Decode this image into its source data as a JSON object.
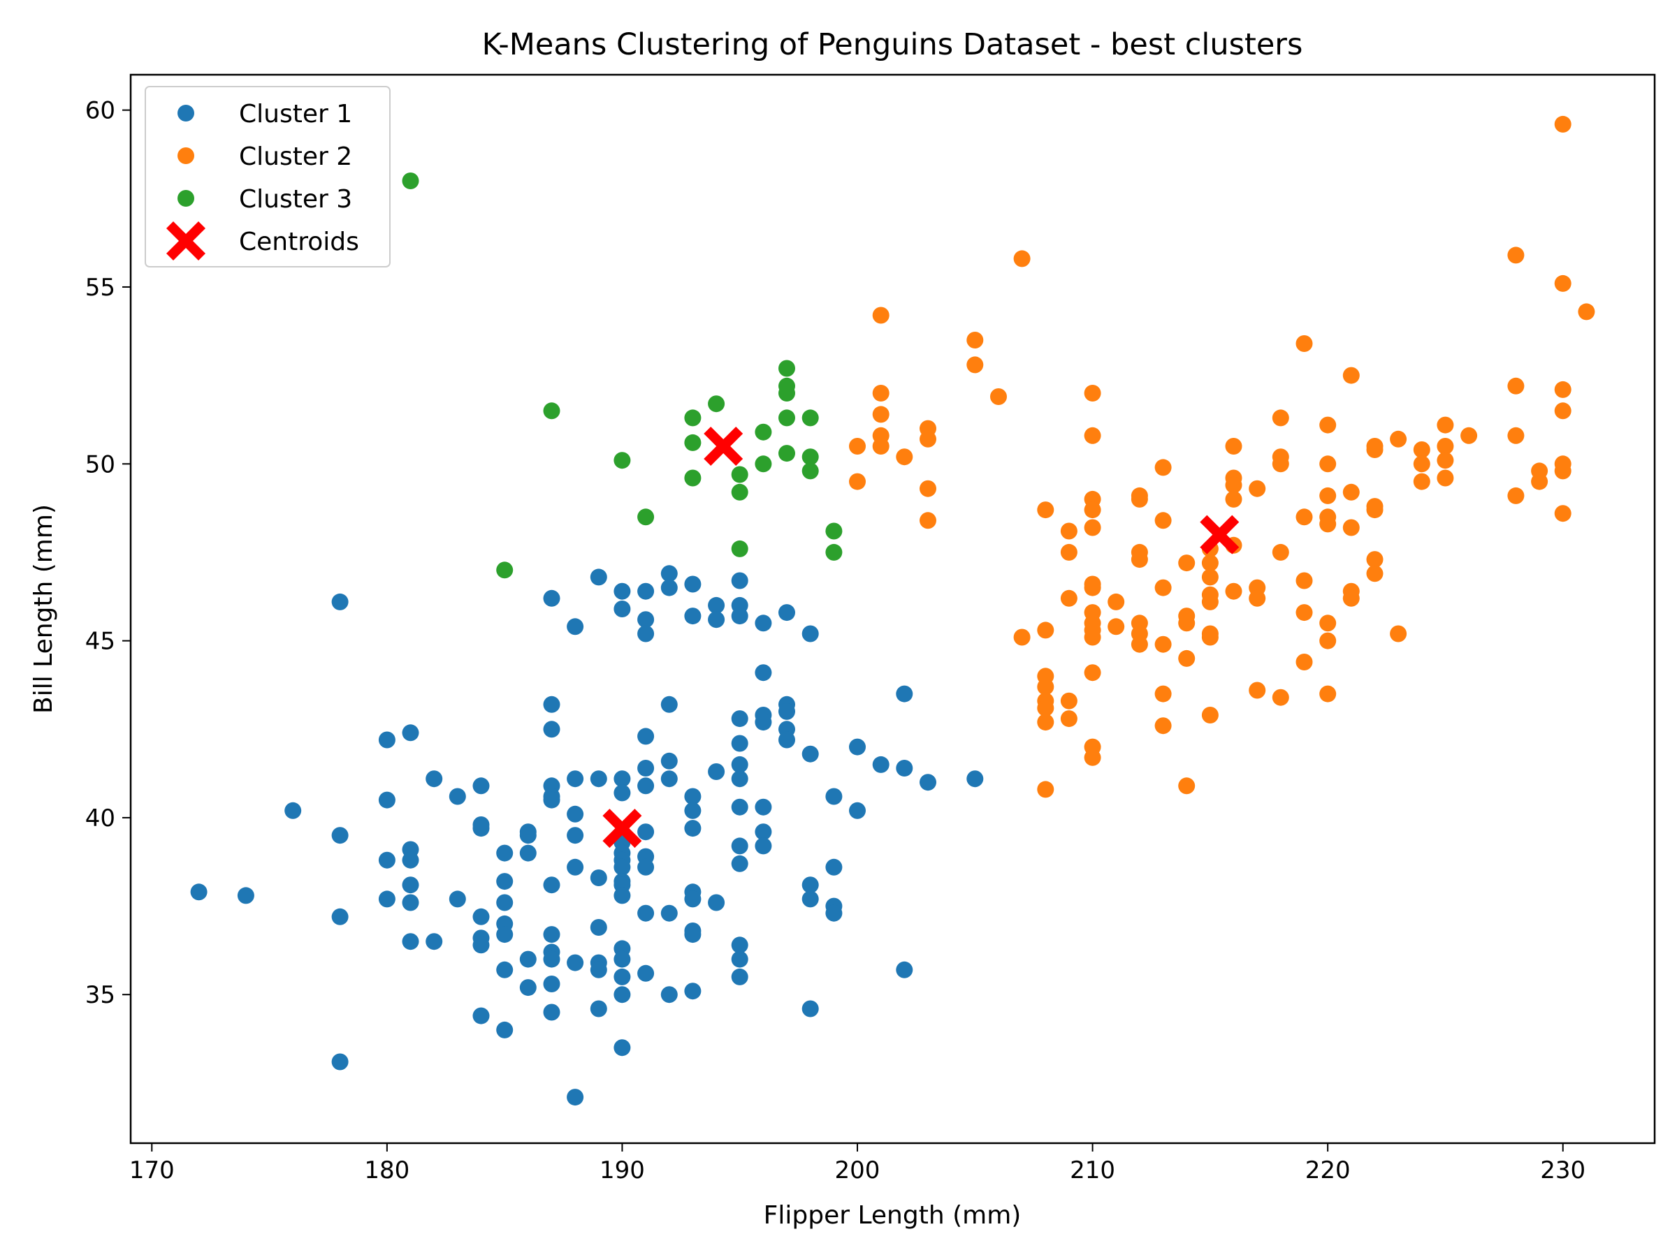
{
  "chart_data": {
    "type": "scatter",
    "title": "K-Means Clustering of Penguins Dataset - best clusters",
    "xlabel": "Flipper Length (mm)",
    "ylabel": "Bill Length (mm)",
    "xlim": [
      169.1,
      233.9
    ],
    "ylim": [
      30.8,
      61.0
    ],
    "xticks": [
      170,
      180,
      190,
      200,
      210,
      220,
      230
    ],
    "yticks": [
      35,
      40,
      45,
      50,
      55,
      60
    ],
    "grid": false,
    "legend_position": "top-left",
    "series": [
      {
        "name": "Cluster 1",
        "color": "#1f77b4",
        "marker": "circle",
        "points": [
          [
            172,
            37.9
          ],
          [
            174,
            37.8
          ],
          [
            176,
            40.2
          ],
          [
            178,
            46.1
          ],
          [
            178,
            39.5
          ],
          [
            178,
            37.2
          ],
          [
            178,
            33.1
          ],
          [
            180,
            42.2
          ],
          [
            180,
            40.5
          ],
          [
            180,
            38.8
          ],
          [
            180,
            37.7
          ],
          [
            181,
            42.4
          ],
          [
            181,
            39.1
          ],
          [
            181,
            38.8
          ],
          [
            181,
            38.1
          ],
          [
            181,
            37.6
          ],
          [
            181,
            36.5
          ],
          [
            182,
            41.1
          ],
          [
            182,
            36.5
          ],
          [
            183,
            40.6
          ],
          [
            183,
            37.7
          ],
          [
            184,
            40.9
          ],
          [
            184,
            39.8
          ],
          [
            184,
            39.7
          ],
          [
            184,
            37.2
          ],
          [
            184,
            36.6
          ],
          [
            184,
            36.4
          ],
          [
            184,
            34.4
          ],
          [
            185,
            39.0
          ],
          [
            185,
            38.2
          ],
          [
            185,
            37.6
          ],
          [
            185,
            37.0
          ],
          [
            185,
            36.7
          ],
          [
            185,
            35.7
          ],
          [
            185,
            34.0
          ],
          [
            186,
            39.6
          ],
          [
            186,
            39.5
          ],
          [
            186,
            39.0
          ],
          [
            186,
            36.0
          ],
          [
            186,
            35.2
          ],
          [
            187,
            46.2
          ],
          [
            187,
            43.2
          ],
          [
            187,
            42.5
          ],
          [
            187,
            40.9
          ],
          [
            187,
            40.6
          ],
          [
            187,
            40.5
          ],
          [
            187,
            38.1
          ],
          [
            187,
            36.7
          ],
          [
            187,
            36.2
          ],
          [
            187,
            36.0
          ],
          [
            187,
            35.3
          ],
          [
            187,
            34.5
          ],
          [
            188,
            45.4
          ],
          [
            188,
            41.1
          ],
          [
            188,
            40.1
          ],
          [
            188,
            39.5
          ],
          [
            188,
            38.6
          ],
          [
            188,
            35.9
          ],
          [
            188,
            32.1
          ],
          [
            189,
            46.8
          ],
          [
            189,
            41.1
          ],
          [
            189,
            38.3
          ],
          [
            189,
            36.9
          ],
          [
            189,
            35.9
          ],
          [
            189,
            35.7
          ],
          [
            189,
            34.6
          ],
          [
            190,
            46.4
          ],
          [
            190,
            45.9
          ],
          [
            190,
            41.1
          ],
          [
            190,
            40.7
          ],
          [
            190,
            39.3
          ],
          [
            190,
            39.0
          ],
          [
            190,
            38.8
          ],
          [
            190,
            38.6
          ],
          [
            190,
            38.2
          ],
          [
            190,
            38.1
          ],
          [
            190,
            37.8
          ],
          [
            190,
            36.3
          ],
          [
            190,
            36.0
          ],
          [
            190,
            35.5
          ],
          [
            190,
            35.0
          ],
          [
            190,
            33.5
          ],
          [
            191,
            46.4
          ],
          [
            191,
            45.6
          ],
          [
            191,
            45.2
          ],
          [
            191,
            42.3
          ],
          [
            191,
            41.4
          ],
          [
            191,
            40.9
          ],
          [
            191,
            39.6
          ],
          [
            191,
            38.9
          ],
          [
            191,
            38.6
          ],
          [
            191,
            37.3
          ],
          [
            191,
            35.6
          ],
          [
            192,
            46.9
          ],
          [
            192,
            46.5
          ],
          [
            192,
            43.2
          ],
          [
            192,
            41.6
          ],
          [
            192,
            41.1
          ],
          [
            192,
            37.3
          ],
          [
            192,
            35.0
          ],
          [
            193,
            46.6
          ],
          [
            193,
            45.7
          ],
          [
            193,
            40.6
          ],
          [
            193,
            40.2
          ],
          [
            193,
            39.7
          ],
          [
            193,
            37.9
          ],
          [
            193,
            37.7
          ],
          [
            193,
            36.8
          ],
          [
            193,
            36.7
          ],
          [
            193,
            35.1
          ],
          [
            194,
            46.0
          ],
          [
            194,
            45.6
          ],
          [
            194,
            41.3
          ],
          [
            194,
            37.6
          ],
          [
            195,
            46.7
          ],
          [
            195,
            46.0
          ],
          [
            195,
            45.7
          ],
          [
            195,
            42.8
          ],
          [
            195,
            42.1
          ],
          [
            195,
            41.5
          ],
          [
            195,
            41.1
          ],
          [
            195,
            40.3
          ],
          [
            195,
            39.2
          ],
          [
            195,
            38.7
          ],
          [
            195,
            36.4
          ],
          [
            195,
            36.0
          ],
          [
            195,
            35.5
          ],
          [
            196,
            45.5
          ],
          [
            196,
            44.1
          ],
          [
            196,
            42.9
          ],
          [
            196,
            42.7
          ],
          [
            196,
            40.3
          ],
          [
            196,
            39.6
          ],
          [
            196,
            39.2
          ],
          [
            197,
            45.8
          ],
          [
            197,
            43.2
          ],
          [
            197,
            43.0
          ],
          [
            197,
            42.5
          ],
          [
            197,
            42.2
          ],
          [
            198,
            45.2
          ],
          [
            198,
            41.8
          ],
          [
            198,
            38.1
          ],
          [
            198,
            37.7
          ],
          [
            198,
            34.6
          ],
          [
            199,
            40.6
          ],
          [
            199,
            38.6
          ],
          [
            199,
            37.5
          ],
          [
            199,
            37.3
          ],
          [
            200,
            42.0
          ],
          [
            200,
            40.2
          ],
          [
            201,
            41.5
          ],
          [
            202,
            43.5
          ],
          [
            202,
            41.4
          ],
          [
            202,
            35.7
          ],
          [
            203,
            41.0
          ],
          [
            205,
            41.1
          ]
        ]
      },
      {
        "name": "Cluster 2",
        "color": "#ff7f0e",
        "marker": "circle",
        "points": [
          [
            200,
            50.5
          ],
          [
            200,
            49.5
          ],
          [
            201,
            54.2
          ],
          [
            201,
            52.0
          ],
          [
            201,
            51.4
          ],
          [
            201,
            50.8
          ],
          [
            201,
            50.5
          ],
          [
            202,
            50.2
          ],
          [
            203,
            51.0
          ],
          [
            203,
            50.7
          ],
          [
            203,
            49.3
          ],
          [
            203,
            48.4
          ],
          [
            205,
            53.5
          ],
          [
            205,
            52.8
          ],
          [
            206,
            51.9
          ],
          [
            207,
            55.8
          ],
          [
            207,
            45.1
          ],
          [
            208,
            48.7
          ],
          [
            208,
            45.3
          ],
          [
            208,
            44.0
          ],
          [
            208,
            43.7
          ],
          [
            208,
            43.3
          ],
          [
            208,
            43.1
          ],
          [
            208,
            42.7
          ],
          [
            208,
            40.8
          ],
          [
            209,
            48.1
          ],
          [
            209,
            47.5
          ],
          [
            209,
            46.2
          ],
          [
            209,
            43.3
          ],
          [
            209,
            42.8
          ],
          [
            210,
            52.0
          ],
          [
            210,
            50.8
          ],
          [
            210,
            49.0
          ],
          [
            210,
            48.7
          ],
          [
            210,
            48.2
          ],
          [
            210,
            46.6
          ],
          [
            210,
            46.5
          ],
          [
            210,
            45.8
          ],
          [
            210,
            45.5
          ],
          [
            210,
            45.3
          ],
          [
            210,
            45.1
          ],
          [
            210,
            44.1
          ],
          [
            210,
            42.0
          ],
          [
            210,
            41.7
          ],
          [
            211,
            46.1
          ],
          [
            211,
            45.4
          ],
          [
            212,
            49.1
          ],
          [
            212,
            49.0
          ],
          [
            212,
            47.5
          ],
          [
            212,
            47.3
          ],
          [
            212,
            45.5
          ],
          [
            212,
            45.2
          ],
          [
            212,
            44.9
          ],
          [
            213,
            49.9
          ],
          [
            213,
            48.4
          ],
          [
            213,
            46.5
          ],
          [
            213,
            44.9
          ],
          [
            213,
            43.5
          ],
          [
            213,
            42.6
          ],
          [
            214,
            47.2
          ],
          [
            214,
            45.7
          ],
          [
            214,
            45.5
          ],
          [
            214,
            44.5
          ],
          [
            214,
            40.9
          ],
          [
            215,
            47.6
          ],
          [
            215,
            47.2
          ],
          [
            215,
            46.8
          ],
          [
            215,
            46.3
          ],
          [
            215,
            46.1
          ],
          [
            215,
            45.2
          ],
          [
            215,
            45.1
          ],
          [
            215,
            42.9
          ],
          [
            216,
            50.5
          ],
          [
            216,
            49.6
          ],
          [
            216,
            49.4
          ],
          [
            216,
            49.0
          ],
          [
            216,
            47.7
          ],
          [
            216,
            46.4
          ],
          [
            217,
            49.3
          ],
          [
            217,
            46.5
          ],
          [
            217,
            46.2
          ],
          [
            217,
            43.6
          ],
          [
            218,
            51.3
          ],
          [
            218,
            50.2
          ],
          [
            218,
            50.0
          ],
          [
            218,
            47.5
          ],
          [
            218,
            43.4
          ],
          [
            219,
            53.4
          ],
          [
            219,
            48.5
          ],
          [
            219,
            46.7
          ],
          [
            219,
            45.8
          ],
          [
            219,
            44.4
          ],
          [
            220,
            51.1
          ],
          [
            220,
            50.0
          ],
          [
            220,
            49.1
          ],
          [
            220,
            48.5
          ],
          [
            220,
            48.3
          ],
          [
            220,
            45.5
          ],
          [
            220,
            45.0
          ],
          [
            220,
            43.5
          ],
          [
            221,
            52.5
          ],
          [
            221,
            49.2
          ],
          [
            221,
            48.2
          ],
          [
            221,
            46.4
          ],
          [
            221,
            46.2
          ],
          [
            222,
            50.5
          ],
          [
            222,
            50.4
          ],
          [
            222,
            48.8
          ],
          [
            222,
            48.7
          ],
          [
            222,
            47.3
          ],
          [
            222,
            46.9
          ],
          [
            223,
            50.7
          ],
          [
            223,
            45.2
          ],
          [
            224,
            50.4
          ],
          [
            224,
            50.0
          ],
          [
            224,
            49.5
          ],
          [
            225,
            51.1
          ],
          [
            225,
            50.5
          ],
          [
            225,
            50.1
          ],
          [
            225,
            49.6
          ],
          [
            226,
            50.8
          ],
          [
            228,
            55.9
          ],
          [
            228,
            52.2
          ],
          [
            228,
            50.8
          ],
          [
            228,
            49.1
          ],
          [
            229,
            49.8
          ],
          [
            229,
            49.5
          ],
          [
            230,
            59.6
          ],
          [
            230,
            55.1
          ],
          [
            230,
            52.1
          ],
          [
            230,
            51.5
          ],
          [
            230,
            50.0
          ],
          [
            230,
            49.8
          ],
          [
            230,
            48.6
          ],
          [
            231,
            54.3
          ]
        ]
      },
      {
        "name": "Cluster 3",
        "color": "#2ca02c",
        "marker": "circle",
        "points": [
          [
            181,
            58.0
          ],
          [
            185,
            47.0
          ],
          [
            187,
            51.5
          ],
          [
            190,
            50.1
          ],
          [
            191,
            48.5
          ],
          [
            193,
            51.3
          ],
          [
            193,
            50.6
          ],
          [
            193,
            49.6
          ],
          [
            194,
            51.7
          ],
          [
            195,
            49.7
          ],
          [
            195,
            49.2
          ],
          [
            195,
            47.6
          ],
          [
            196,
            50.9
          ],
          [
            196,
            50.0
          ],
          [
            197,
            52.7
          ],
          [
            197,
            52.2
          ],
          [
            197,
            52.0
          ],
          [
            197,
            51.3
          ],
          [
            197,
            50.3
          ],
          [
            198,
            51.3
          ],
          [
            198,
            50.2
          ],
          [
            198,
            49.8
          ],
          [
            199,
            48.1
          ],
          [
            199,
            47.5
          ]
        ]
      },
      {
        "name": "Centroids",
        "color": "#ff0000",
        "marker": "X",
        "points": [
          [
            190.0,
            39.7
          ],
          [
            194.3,
            50.5
          ],
          [
            215.4,
            48.0
          ]
        ]
      }
    ]
  }
}
